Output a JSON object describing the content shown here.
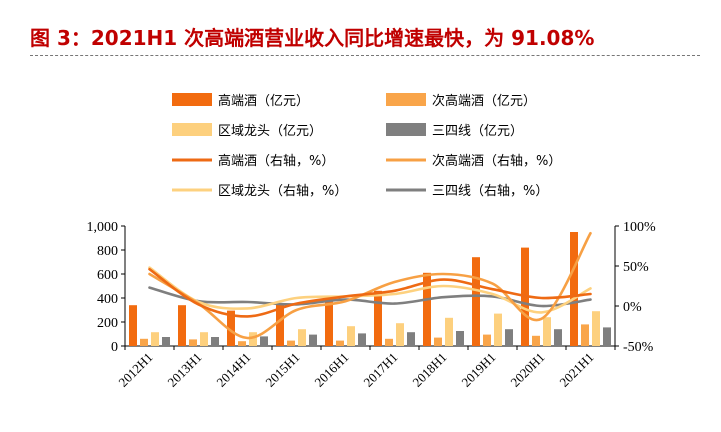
{
  "title": "图 3：2021H1 次高端酒营业收入同比增速最快，为 91.08%",
  "chart_data": {
    "type": "bar",
    "categories": [
      "2012H1",
      "2013H1",
      "2014H1",
      "2015H1",
      "2016H1",
      "2017H1",
      "2018H1",
      "2019H1",
      "2020H1",
      "2021H1"
    ],
    "y_left": {
      "lim": [
        0,
        1000
      ],
      "ticks": [
        "0",
        "200",
        "400",
        "600",
        "800",
        "1,000"
      ]
    },
    "y_right": {
      "lim": [
        -50,
        100
      ],
      "ticks": [
        "-50%",
        "0%",
        "50%",
        "100%"
      ]
    },
    "bar_series": [
      {
        "name": "高端酒（亿元）",
        "color": "#f26b0f",
        "values": [
          340,
          340,
          295,
          345,
          390,
          460,
          610,
          740,
          820,
          950
        ]
      },
      {
        "name": "次高端酒（亿元）",
        "color": "#f9a54a",
        "values": [
          60,
          55,
          40,
          45,
          45,
          60,
          70,
          95,
          85,
          180
        ]
      },
      {
        "name": "区域龙头（亿元）",
        "color": "#fdd07e",
        "values": [
          115,
          115,
          115,
          140,
          165,
          190,
          235,
          270,
          240,
          290
        ]
      },
      {
        "name": "三四线（亿元）",
        "color": "#7f7f7f",
        "values": [
          75,
          75,
          80,
          95,
          105,
          115,
          125,
          140,
          140,
          155
        ]
      }
    ],
    "line_series": [
      {
        "name": "高端酒（右轴，%）",
        "color": "#ee6a14",
        "values": [
          46,
          2,
          -13,
          3,
          12,
          19,
          33,
          21,
          10,
          15
        ]
      },
      {
        "name": "次高端酒（右轴，%）",
        "color": "#f7a044",
        "values": [
          40,
          3,
          -40,
          -5,
          6,
          30,
          40,
          28,
          -16,
          91
        ]
      },
      {
        "name": "区域龙头（右轴，%）",
        "color": "#fdd17f",
        "values": [
          48,
          5,
          -3,
          10,
          12,
          15,
          25,
          15,
          -8,
          22
        ]
      },
      {
        "name": "三四线（右轴，%）",
        "color": "#7f7f7f",
        "values": [
          23,
          6,
          5,
          2,
          8,
          3,
          11,
          12,
          0,
          8
        ]
      }
    ]
  }
}
